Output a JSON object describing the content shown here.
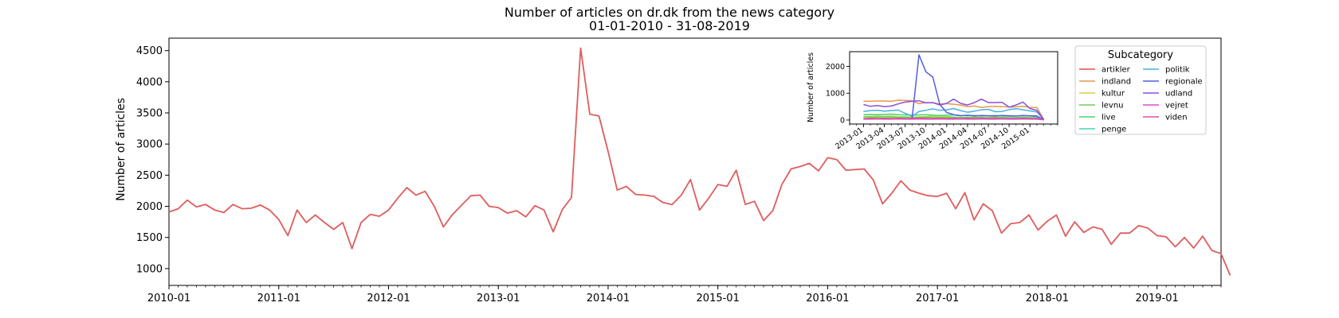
{
  "chart_data": [
    {
      "type": "line",
      "title": "Number of articles on dr.dk from the news category",
      "subtitle": "01-01-2010 - 31-08-2019",
      "xlabel": "",
      "ylabel": "Number of articles",
      "x_start": "2010-01",
      "x_end": "2019-08",
      "xlim": [
        "2010-01",
        "2019-08"
      ],
      "ylim": [
        730,
        4700
      ],
      "yticks": [
        1000,
        1500,
        2000,
        2500,
        3000,
        3500,
        4000,
        4500
      ],
      "xticks": [
        "2010-01",
        "2011-01",
        "2012-01",
        "2013-01",
        "2014-01",
        "2015-01",
        "2016-01",
        "2017-01",
        "2018-01",
        "2019-01"
      ],
      "grid": false,
      "series": [
        {
          "color": "#e05c5c",
          "values": [
            1910,
            1960,
            2100,
            1990,
            2030,
            1940,
            1900,
            2030,
            1960,
            1970,
            2020,
            1940,
            1790,
            1530,
            1940,
            1740,
            1860,
            1740,
            1630,
            1740,
            1320,
            1740,
            1870,
            1840,
            1940,
            2130,
            2300,
            2180,
            2240,
            2000,
            1670,
            1870,
            2020,
            2170,
            2180,
            2000,
            1980,
            1890,
            1930,
            1830,
            2010,
            1940,
            1590,
            1950,
            2140,
            4540,
            3480,
            3450,
            2880,
            2260,
            2320,
            2190,
            2180,
            2160,
            2060,
            2030,
            2180,
            2430,
            1940,
            2130,
            2350,
            2320,
            2580,
            2030,
            2080,
            1770,
            1930,
            2350,
            2600,
            2640,
            2690,
            2570,
            2780,
            2750,
            2580,
            2590,
            2600,
            2420,
            2040,
            2210,
            2410,
            2260,
            2210,
            2170,
            2160,
            2210,
            1960,
            2220,
            1780,
            2040,
            1930,
            1570,
            1720,
            1740,
            1860,
            1620,
            1760,
            1860,
            1520,
            1750,
            1580,
            1670,
            1630,
            1390,
            1570,
            1570,
            1690,
            1650,
            1530,
            1510,
            1350,
            1500,
            1330,
            1520,
            1290,
            1240,
            890
          ]
        }
      ]
    },
    {
      "type": "line",
      "ylabel": "Number of articles",
      "x_start": "2012-11",
      "xlim": [
        "2012-11",
        "2015-05"
      ],
      "ylim": [
        -150,
        2550
      ],
      "yticks": [
        0,
        1000,
        2000
      ],
      "xticks": [
        "2013-01",
        "2013-04",
        "2013-07",
        "2013-10",
        "2014-01",
        "2014-04",
        "2014-07",
        "2014-10",
        "2015-01"
      ],
      "legend": {
        "title": "Subcategory",
        "placement": "upper right",
        "columns": 2
      },
      "series": [
        {
          "name": "artikler",
          "color": "#e04f4f",
          "values": [
            null,
            null,
            null,
            null,
            null,
            null,
            null,
            null,
            null,
            null,
            null,
            null,
            null,
            null,
            null,
            null,
            null,
            null,
            null,
            null,
            null,
            null,
            null,
            null,
            null,
            null,
            null,
            null,
            null
          ]
        },
        {
          "name": "indland",
          "color": "#e39a4c",
          "values": [
            null,
            null,
            700,
            700,
            710,
            710,
            700,
            740,
            730,
            720,
            610,
            650,
            640,
            600,
            610,
            590,
            560,
            500,
            520,
            470,
            500,
            510,
            500,
            480,
            490,
            510,
            470,
            470,
            20
          ]
        },
        {
          "name": "kultur",
          "color": "#cfd447",
          "values": [
            null,
            null,
            130,
            140,
            150,
            140,
            150,
            130,
            120,
            110,
            120,
            130,
            150,
            120,
            130,
            110,
            100,
            90,
            110,
            90,
            100,
            110,
            90,
            80,
            90,
            100,
            80,
            70,
            10
          ]
        },
        {
          "name": "levnu",
          "color": "#6ecf4f",
          "values": [
            null,
            null,
            120,
            110,
            110,
            120,
            110,
            100,
            110,
            90,
            100,
            110,
            100,
            90,
            100,
            110,
            90,
            100,
            90,
            100,
            80,
            90,
            100,
            80,
            90,
            100,
            90,
            80,
            10
          ]
        },
        {
          "name": "live",
          "color": "#45d46a",
          "values": [
            null,
            null,
            200,
            210,
            200,
            210,
            220,
            200,
            190,
            180,
            190,
            200,
            180,
            170,
            180,
            190,
            170,
            160,
            170,
            150,
            160,
            170,
            150,
            140,
            150,
            160,
            150,
            130,
            10
          ]
        },
        {
          "name": "penge",
          "color": "#46d6b4",
          "values": [
            null,
            null,
            60,
            70,
            60,
            70,
            60,
            60,
            70,
            60,
            50,
            60,
            60,
            50,
            60,
            70,
            60,
            60,
            50,
            60,
            70,
            60,
            50,
            60,
            70,
            60,
            50,
            60,
            5
          ]
        },
        {
          "name": "politik",
          "color": "#46b1e0",
          "values": [
            null,
            null,
            320,
            350,
            360,
            330,
            350,
            370,
            250,
            140,
            320,
            360,
            420,
            360,
            380,
            430,
            350,
            290,
            330,
            380,
            400,
            310,
            320,
            390,
            420,
            380,
            340,
            300,
            20
          ]
        },
        {
          "name": "regionale",
          "color": "#4f5fe0",
          "values": [
            null,
            null,
            40,
            50,
            40,
            50,
            40,
            60,
            50,
            40,
            2430,
            1800,
            1600,
            580,
            280,
            200,
            160,
            180,
            150,
            170,
            160,
            150,
            170,
            160,
            150,
            170,
            160,
            150,
            10
          ]
        },
        {
          "name": "udland",
          "color": "#8a4fe0",
          "values": [
            null,
            null,
            580,
            510,
            540,
            500,
            520,
            600,
            670,
            700,
            720,
            640,
            650,
            560,
            620,
            780,
            620,
            560,
            650,
            780,
            650,
            650,
            660,
            480,
            560,
            670,
            430,
            360,
            20
          ]
        },
        {
          "name": "vejret",
          "color": "#d94fd9",
          "values": [
            null,
            null,
            30,
            30,
            40,
            30,
            30,
            40,
            30,
            30,
            40,
            30,
            30,
            40,
            30,
            30,
            40,
            30,
            30,
            40,
            30,
            30,
            40,
            30,
            30,
            40,
            30,
            30,
            5
          ]
        },
        {
          "name": "viden",
          "color": "#e04f98",
          "values": [
            null,
            null,
            50,
            60,
            50,
            60,
            50,
            60,
            50,
            60,
            70,
            60,
            50,
            60,
            50,
            60,
            50,
            60,
            50,
            60,
            50,
            60,
            50,
            60,
            50,
            60,
            50,
            60,
            5
          ]
        }
      ]
    }
  ]
}
